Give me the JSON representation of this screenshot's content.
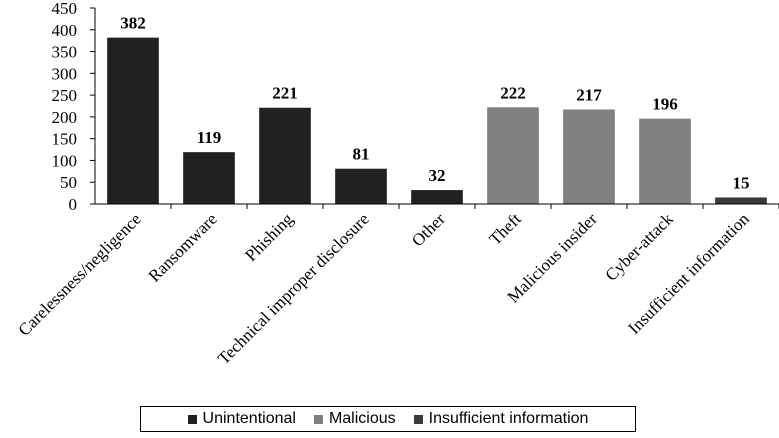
{
  "chart_data": {
    "type": "bar",
    "categories": [
      "Carelessness/negligence",
      "Ransomware",
      "Phishing",
      "Technical improper disclosure",
      "Other",
      "Theft",
      "Malicious insider",
      "Cyber-attack",
      "Insufficient information"
    ],
    "values": [
      382,
      119,
      221,
      81,
      32,
      222,
      217,
      196,
      15
    ],
    "groups": [
      "Unintentional",
      "Unintentional",
      "Unintentional",
      "Unintentional",
      "Unintentional",
      "Malicious",
      "Malicious",
      "Malicious",
      "Insufficient information"
    ],
    "ylim": [
      0,
      450
    ],
    "yticks": [
      "0",
      "50",
      "100",
      "150",
      "200",
      "250",
      "300",
      "350",
      "400",
      "450"
    ],
    "data_labels": [
      "382",
      "119",
      "221",
      "81",
      "32",
      "222",
      "217",
      "196",
      "15"
    ],
    "legend": {
      "position": "bottom",
      "entries": [
        {
          "label": "Unintentional",
          "color": "#222222"
        },
        {
          "label": "Malicious",
          "color": "#808080"
        },
        {
          "label": "Insufficient information",
          "color": "#3a3a3a"
        }
      ]
    },
    "grid": false,
    "title": "",
    "xlabel": "",
    "ylabel": ""
  }
}
